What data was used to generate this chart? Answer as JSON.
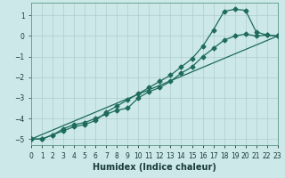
{
  "xlabel": "Humidex (Indice chaleur)",
  "ylabel": "",
  "bg_color": "#cce8e8",
  "grid_color": "#b0cccc",
  "line_color": "#1e6b5e",
  "line1_x": [
    0,
    1,
    2,
    3,
    4,
    5,
    6,
    7,
    8,
    9,
    10,
    11,
    12,
    13,
    14,
    15,
    16,
    17,
    18,
    19,
    20,
    21,
    22,
    23
  ],
  "line1_y": [
    -5.0,
    -5.0,
    -4.8,
    -4.5,
    -4.3,
    -4.2,
    -4.0,
    -3.8,
    -3.6,
    -3.5,
    -3.0,
    -2.7,
    -2.5,
    -2.2,
    -1.8,
    -1.5,
    -1.0,
    -0.6,
    -0.2,
    0.0,
    0.1,
    0.0,
    0.05,
    0.0
  ],
  "line2_x": [
    0,
    1,
    2,
    3,
    4,
    5,
    6,
    7,
    8,
    9,
    10,
    11,
    12,
    13,
    14,
    15,
    16,
    17,
    18,
    19,
    20,
    21,
    22,
    23
  ],
  "line2_y": [
    -5.0,
    -5.0,
    -4.8,
    -4.6,
    -4.4,
    -4.3,
    -4.1,
    -3.7,
    -3.4,
    -3.1,
    -2.8,
    -2.5,
    -2.2,
    -1.9,
    -1.5,
    -1.1,
    -0.5,
    0.3,
    1.2,
    1.3,
    1.25,
    0.2,
    0.05,
    0.0
  ],
  "line3_x": [
    0,
    23
  ],
  "line3_y": [
    -5.0,
    0.0
  ],
  "xlim": [
    0,
    23
  ],
  "ylim": [
    -5.3,
    1.6
  ],
  "yticks": [
    -5,
    -4,
    -3,
    -2,
    -1,
    0,
    1
  ],
  "xticks": [
    0,
    1,
    2,
    3,
    4,
    5,
    6,
    7,
    8,
    9,
    10,
    11,
    12,
    13,
    14,
    15,
    16,
    17,
    18,
    19,
    20,
    21,
    22,
    23
  ],
  "xtick_labels": [
    "0",
    "1",
    "2",
    "3",
    "4",
    "5",
    "6",
    "7",
    "8",
    "9",
    "10",
    "11",
    "12",
    "13",
    "14",
    "15",
    "16",
    "17",
    "18",
    "19",
    "20",
    "21",
    "22",
    "23"
  ],
  "fontsize_label": 7,
  "fontsize_tick": 5.5,
  "marker_size": 2.5,
  "linewidth": 0.9
}
